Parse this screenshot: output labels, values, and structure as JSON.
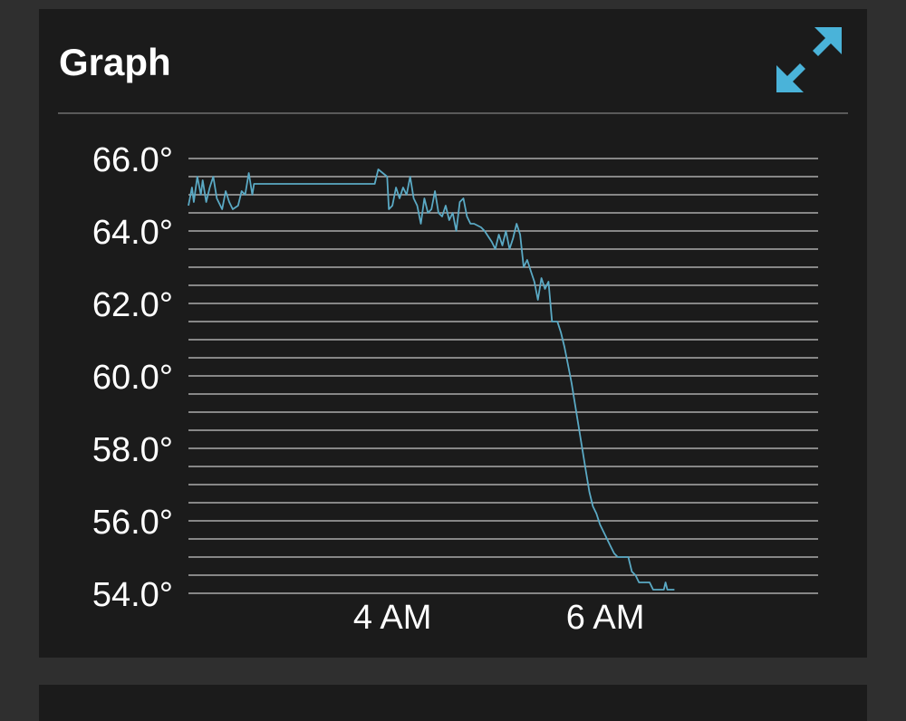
{
  "panel": {
    "title": "Graph",
    "expand_icon": "expand-arrows-icon"
  },
  "colors": {
    "panel_bg": "#1b1b1b",
    "page_bg": "#2f2f2f",
    "line": "#5aa9c4",
    "icon": "#4ab3d9",
    "grid": "#c8c8c8"
  },
  "chart_data": {
    "type": "line",
    "title": "Graph",
    "xlabel": "",
    "ylabel": "",
    "unit": "°F",
    "ylim": [
      54.0,
      66.0
    ],
    "yticks": [
      54.0,
      56.0,
      58.0,
      60.0,
      62.0,
      64.0,
      66.0
    ],
    "ytick_labels": [
      "54.0°",
      "56.0°",
      "58.0°",
      "60.0°",
      "62.0°",
      "64.0°",
      "66.0°"
    ],
    "xlim": [
      "02:05",
      "08:00"
    ],
    "xticks": [
      "04:00",
      "06:00"
    ],
    "xtick_labels": [
      "4 AM",
      "6 AM"
    ],
    "grid": true,
    "series": [
      {
        "points": [
          [
            "02:05",
            64.7
          ],
          [
            "02:07",
            65.2
          ],
          [
            "02:08",
            64.8
          ],
          [
            "02:10",
            65.5
          ],
          [
            "02:12",
            65.0
          ],
          [
            "02:13",
            65.4
          ],
          [
            "02:15",
            64.8
          ],
          [
            "02:17",
            65.2
          ],
          [
            "02:19",
            65.5
          ],
          [
            "02:21",
            64.9
          ],
          [
            "02:24",
            64.6
          ],
          [
            "02:26",
            65.1
          ],
          [
            "02:28",
            64.8
          ],
          [
            "02:30",
            64.6
          ],
          [
            "02:33",
            64.7
          ],
          [
            "02:35",
            65.1
          ],
          [
            "02:37",
            65.0
          ],
          [
            "02:39",
            65.6
          ],
          [
            "02:41",
            65.0
          ],
          [
            "02:42",
            65.3
          ],
          [
            "03:50",
            65.3
          ],
          [
            "03:52",
            65.7
          ],
          [
            "03:57",
            65.5
          ],
          [
            "03:58",
            64.6
          ],
          [
            "04:00",
            64.7
          ],
          [
            "04:02",
            65.2
          ],
          [
            "04:04",
            64.9
          ],
          [
            "04:06",
            65.2
          ],
          [
            "04:08",
            65.0
          ],
          [
            "04:10",
            65.5
          ],
          [
            "04:12",
            64.9
          ],
          [
            "04:14",
            64.7
          ],
          [
            "04:16",
            64.2
          ],
          [
            "04:18",
            64.9
          ],
          [
            "04:20",
            64.5
          ],
          [
            "04:22",
            64.6
          ],
          [
            "04:24",
            65.1
          ],
          [
            "04:26",
            64.5
          ],
          [
            "04:28",
            64.4
          ],
          [
            "04:30",
            64.7
          ],
          [
            "04:32",
            64.3
          ],
          [
            "04:34",
            64.5
          ],
          [
            "04:36",
            64.0
          ],
          [
            "04:38",
            64.8
          ],
          [
            "04:40",
            64.9
          ],
          [
            "04:42",
            64.4
          ],
          [
            "04:44",
            64.2
          ],
          [
            "04:46",
            64.2
          ],
          [
            "04:50",
            64.1
          ],
          [
            "04:52",
            64.0
          ],
          [
            "04:56",
            63.7
          ],
          [
            "04:58",
            63.5
          ],
          [
            "05:00",
            63.9
          ],
          [
            "05:02",
            63.6
          ],
          [
            "05:04",
            64.0
          ],
          [
            "05:06",
            63.5
          ],
          [
            "05:08",
            63.8
          ],
          [
            "05:10",
            64.2
          ],
          [
            "05:12",
            63.9
          ],
          [
            "05:14",
            63.0
          ],
          [
            "05:16",
            63.2
          ],
          [
            "05:18",
            62.9
          ],
          [
            "05:20",
            62.6
          ],
          [
            "05:22",
            62.1
          ],
          [
            "05:24",
            62.7
          ],
          [
            "05:26",
            62.4
          ],
          [
            "05:28",
            62.6
          ],
          [
            "05:30",
            61.5
          ],
          [
            "05:33",
            61.5
          ],
          [
            "05:35",
            61.2
          ],
          [
            "05:37",
            60.8
          ],
          [
            "05:39",
            60.3
          ],
          [
            "05:41",
            59.8
          ],
          [
            "05:43",
            59.2
          ],
          [
            "05:45",
            58.6
          ],
          [
            "05:47",
            58.0
          ],
          [
            "05:49",
            57.4
          ],
          [
            "05:51",
            56.8
          ],
          [
            "05:53",
            56.4
          ],
          [
            "05:55",
            56.2
          ],
          [
            "05:57",
            55.9
          ],
          [
            "05:59",
            55.7
          ],
          [
            "06:01",
            55.5
          ],
          [
            "06:03",
            55.3
          ],
          [
            "06:05",
            55.1
          ],
          [
            "06:07",
            55.0
          ],
          [
            "06:13",
            55.0
          ],
          [
            "06:15",
            54.6
          ],
          [
            "06:17",
            54.5
          ],
          [
            "06:19",
            54.3
          ],
          [
            "06:25",
            54.3
          ],
          [
            "06:27",
            54.1
          ],
          [
            "06:33",
            54.1
          ],
          [
            "06:34",
            54.3
          ],
          [
            "06:35",
            54.1
          ],
          [
            "06:39",
            54.1
          ]
        ]
      }
    ]
  }
}
